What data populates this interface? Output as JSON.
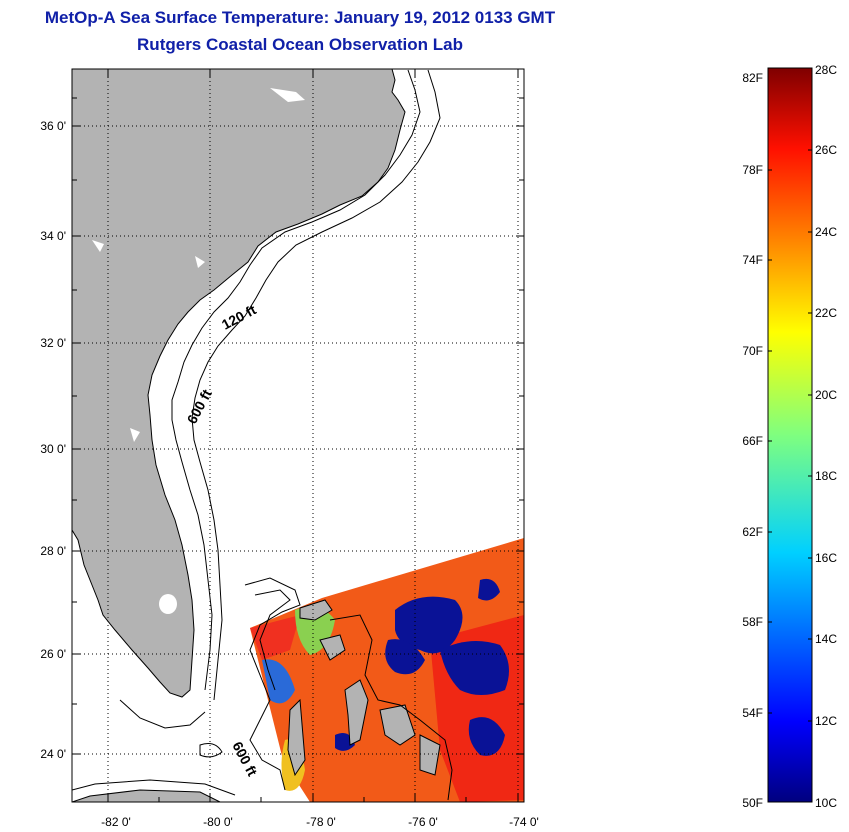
{
  "header": {
    "title": "MetOp-A Sea Surface Temperature:  January 19, 2012 0133 GMT",
    "subtitle": "Rutgers Coastal Ocean Observation Lab"
  },
  "map": {
    "lat_labels": [
      "36 0'",
      "34 0'",
      "32 0'",
      "30 0'",
      "28 0'",
      "26 0'",
      "24 0'"
    ],
    "lon_labels": [
      "-82 0'",
      "-80 0'",
      "-78 0'",
      "-76 0'",
      "-74 0'"
    ],
    "contour_labels": {
      "shelf_120": "120 ft",
      "shelf_600_north": "600 ft",
      "shelf_600_south": "600 ft"
    },
    "colors": {
      "land": "#b3b3b3",
      "ocean_none": "#ffffff",
      "coast": "#000000"
    }
  },
  "colorbar": {
    "f_labels": [
      "82F",
      "78F",
      "74F",
      "70F",
      "66F",
      "62F",
      "58F",
      "54F",
      "50F"
    ],
    "c_labels": [
      "28C",
      "26C",
      "24C",
      "22C",
      "20C",
      "18C",
      "16C",
      "14C",
      "12C",
      "10C"
    ],
    "range_c": [
      10,
      28
    ],
    "range_f": [
      50,
      82
    ]
  }
}
